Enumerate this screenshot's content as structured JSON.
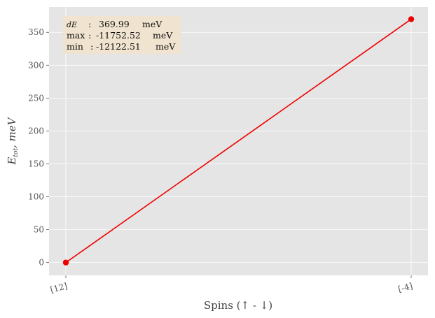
{
  "chart_data": {
    "type": "line",
    "categories": [
      "[12]",
      "[-4]"
    ],
    "series": [
      {
        "values": [
          0,
          369.99
        ],
        "color": "#ee0000"
      }
    ],
    "xlabel": "Spins (↑ - ↓)",
    "ylabel_main": "E",
    "ylabel_sub": "tot",
    "ylabel_tail": ", meV",
    "ylim": [
      -19.5,
      388.5
    ],
    "yticks": [
      0,
      50,
      100,
      150,
      200,
      250,
      300,
      350
    ],
    "grid": true,
    "background": "#e5e5e5",
    "grid_color": "#ffffff",
    "annotation": {
      "background": "#f0e3cf",
      "lines": [
        {
          "label": "dE",
          "value": "369.99",
          "unit": "meV"
        },
        {
          "label": "max",
          "value": "-11752.52",
          "unit": "meV"
        },
        {
          "label": "min",
          "value": "-12122.51",
          "unit": "meV"
        }
      ]
    }
  }
}
